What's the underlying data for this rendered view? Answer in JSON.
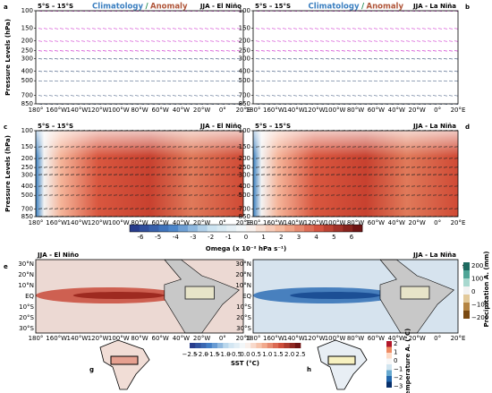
{
  "panels": [
    {
      "letter": "a",
      "region": "5°S – 15°S",
      "legend_clim": "Climatology",
      "legend_sep": "/",
      "legend_anom": "Anomaly",
      "season": "JJA - El Niño"
    },
    {
      "letter": "b",
      "region": "5°S – 15°S",
      "legend_clim": "Climatology",
      "legend_sep": "/",
      "legend_anom": "Anomaly",
      "season": "JJA - La Niña"
    },
    {
      "letter": "c",
      "region": "5°S – 15°S",
      "season": "JJA - El Niño"
    },
    {
      "letter": "d",
      "region": "5°S – 15°S",
      "season": "JJA - La Niña"
    }
  ],
  "maps": [
    {
      "letter": "e",
      "title": "JJA - El Niño"
    },
    {
      "letter": "f",
      "title": "JJA - La Niña"
    }
  ],
  "insets": [
    {
      "letter": "g"
    },
    {
      "letter": "h"
    }
  ],
  "y_axis_label": "Pressure Levels (hPa)",
  "pressure_ticks": [
    "100",
    "150",
    "200",
    "250",
    "300",
    "400",
    "500",
    "700",
    "850"
  ],
  "lon_ticks": [
    "180°",
    "160°W",
    "140°W",
    "120°W",
    "100°W",
    "80°W",
    "60°W",
    "40°W",
    "20°W",
    "0°",
    "20°E"
  ],
  "lat_ticks": [
    "30°N",
    "20°N",
    "10°N",
    "EQ",
    "10°S",
    "20°S",
    "30°S"
  ],
  "omega_colorbar": {
    "label": "Omega (x 10⁻² hPa s⁻¹)",
    "ticks": [
      "-6",
      "-5",
      "-4",
      "-3",
      "-2",
      "-1",
      "0",
      "1",
      "2",
      "3",
      "4",
      "5",
      "6"
    ]
  },
  "sst_colorbar": {
    "label": "SST (°C)",
    "ticks": [
      "−2.5",
      "−2.0",
      "−1.5",
      "−1.0",
      "−0.5",
      "0.0",
      "0.5",
      "1.0",
      "1.5",
      "2.0",
      "2.5"
    ]
  },
  "precip_colorbar": {
    "label": "Precipitation A. (mm)",
    "ticks": [
      "200",
      "100",
      "0",
      "−100",
      "−200"
    ]
  },
  "temp_colorbar": {
    "label": "Temperature A. (°C)",
    "ticks": [
      "2",
      "1",
      "0",
      "−1",
      "−2",
      "−3"
    ]
  }
}
